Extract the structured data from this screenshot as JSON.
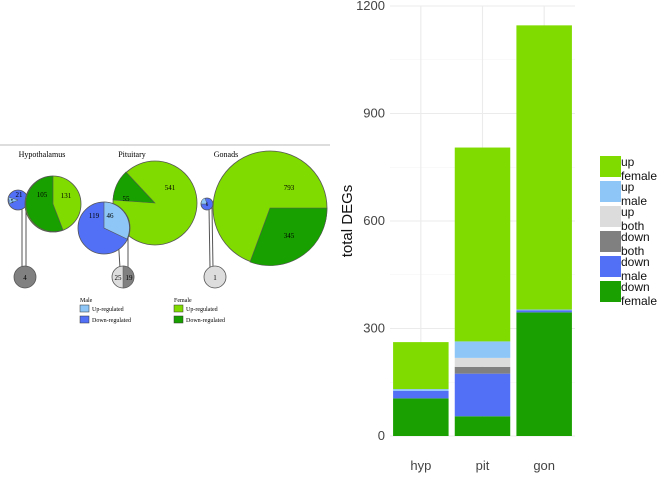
{
  "chart_data": [
    {
      "type": "pie",
      "panels": [
        {
          "title": "Hypothalamus",
          "female": {
            "up": 131,
            "down": 105
          },
          "male": {
            "up": 5,
            "down": 21
          },
          "shared": 4
        },
        {
          "title": "Pituitary",
          "female": {
            "up": 541,
            "down": 55
          },
          "male": {
            "up": 46,
            "down": 119
          },
          "shared": [
            25,
            19
          ]
        },
        {
          "title": "Gonads",
          "female": {
            "up": 793,
            "down": 345
          },
          "male": {
            "up": 2,
            "down": 6
          },
          "shared": 1
        }
      ],
      "legend": {
        "male_title": "Male",
        "female_title": "Female",
        "male_up": "Up-regulated",
        "male_down": "Down-regulated",
        "female_up": "Up-regulated",
        "female_down": "Down-regulated"
      },
      "colors": {
        "female_up": "#7FDB00",
        "female_down": "#18A000",
        "male_up": "#8DC6F7",
        "male_down": "#5270F5",
        "shared_dark": "#808080",
        "shared_light": "#DDDDDD"
      }
    },
    {
      "type": "bar",
      "stacked": true,
      "categories": [
        "hyp",
        "pit",
        "gon"
      ],
      "ylabel": "total DEGs",
      "xlabel": "",
      "ylim": [
        0,
        1200
      ],
      "yticks": [
        0,
        300,
        600,
        900,
        1200
      ],
      "series": [
        {
          "name": "down female",
          "color": "#1AA000",
          "values": [
            105,
            55,
            345
          ]
        },
        {
          "name": "down male",
          "color": "#5270F5",
          "values": [
            21,
            119,
            6
          ]
        },
        {
          "name": "down both",
          "color": "#808080",
          "values": [
            0,
            19,
            0
          ]
        },
        {
          "name": "up both",
          "color": "#DCDCDC",
          "values": [
            0,
            25,
            0
          ]
        },
        {
          "name": "up male",
          "color": "#8DC6F7",
          "values": [
            5,
            46,
            2
          ]
        },
        {
          "name": "up female",
          "color": "#7FDB00",
          "values": [
            131,
            541,
            793
          ]
        }
      ],
      "legend": [
        {
          "line1": "up",
          "line2": "female",
          "color": "#7FDB00"
        },
        {
          "line1": "up",
          "line2": "male",
          "color": "#8DC6F7"
        },
        {
          "line1": "up",
          "line2": "both",
          "color": "#DCDCDC"
        },
        {
          "line1": "down",
          "line2": "both",
          "color": "#808080"
        },
        {
          "line1": "down",
          "line2": "male",
          "color": "#5270F5"
        },
        {
          "line1": "down",
          "line2": "female",
          "color": "#1AA000"
        }
      ]
    }
  ]
}
